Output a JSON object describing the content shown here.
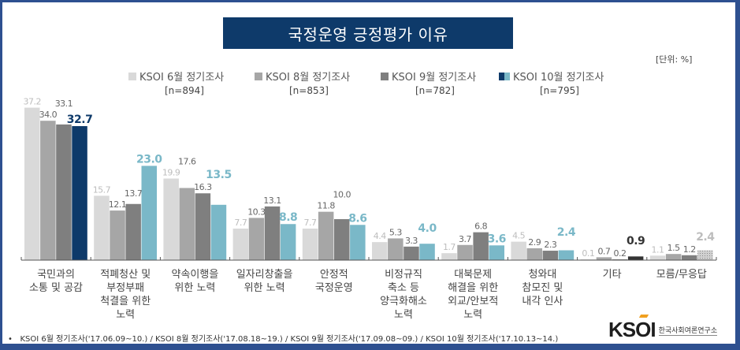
{
  "chart_data": {
    "type": "bar",
    "title": "국정운영 긍정평가 이유",
    "unit_label": "[단위: %]",
    "xlabel": "",
    "ylabel": "",
    "ylim": [
      0,
      40
    ],
    "grid": false,
    "legend_position": "top",
    "categories": [
      "국민과의\n소통 및 공감",
      "적폐청산 및\n부정부패\n척결을 위한\n노력",
      "약속이행을\n위한 노력",
      "일자리창출을\n위한 노력",
      "안정적\n국정운영",
      "비정규직\n축소 등\n양극화해소\n노력",
      "대북문제\n해결을 위한\n외교/안보적\n노력",
      "청와대\n참모진 및\n내각 인사",
      "기타",
      "모름/무응답"
    ],
    "series": [
      {
        "name": "KSOI 6월 정기조사",
        "n": "[n=894]",
        "color": "#d9d9d9",
        "values": [
          37.2,
          15.7,
          19.9,
          7.7,
          7.7,
          4.4,
          1.7,
          4.5,
          0.1,
          1.1
        ]
      },
      {
        "name": "KSOI 8월 정기조사",
        "n": "[n=853]",
        "color": "#a6a6a6",
        "values": [
          34.0,
          12.1,
          17.6,
          10.3,
          11.8,
          5.3,
          3.7,
          2.9,
          0.7,
          1.5
        ]
      },
      {
        "name": "KSOI 9월 정기조사",
        "n": "[n=782]",
        "color": "#7f7f7f",
        "values": [
          33.1,
          13.7,
          16.3,
          13.1,
          10.0,
          3.3,
          6.8,
          2.3,
          0.2,
          1.2
        ]
      },
      {
        "name": "KSOI 10월 정기조사",
        "n": "[n=795]",
        "color": "#7ab8c8",
        "values": [
          32.7,
          23.0,
          13.5,
          8.8,
          8.6,
          4.0,
          3.6,
          2.4,
          0.9,
          2.4
        ]
      }
    ],
    "highlight_colors": {
      "first_category_latest": "#0e3a6a",
      "other_latest": "#7ab8c8",
      "etc_latest": "#333333",
      "unknown_latest": "#bdbdbd"
    },
    "label_colors": [
      "#bdbdbd",
      "#666666",
      "#666666"
    ]
  },
  "footnote": "KSOI 6월 정기조사('17.06.09~10.) / KSOI 8월 정기조사('17.08.18~19.) / KSOI 9월 정기조사('17.09.08~09.) / KSOI 10월 정기조사('17.10.13~14.)",
  "footnote_bullet": "•",
  "logo": {
    "mark": "KSOI",
    "text": "한국사회여론연구소"
  }
}
